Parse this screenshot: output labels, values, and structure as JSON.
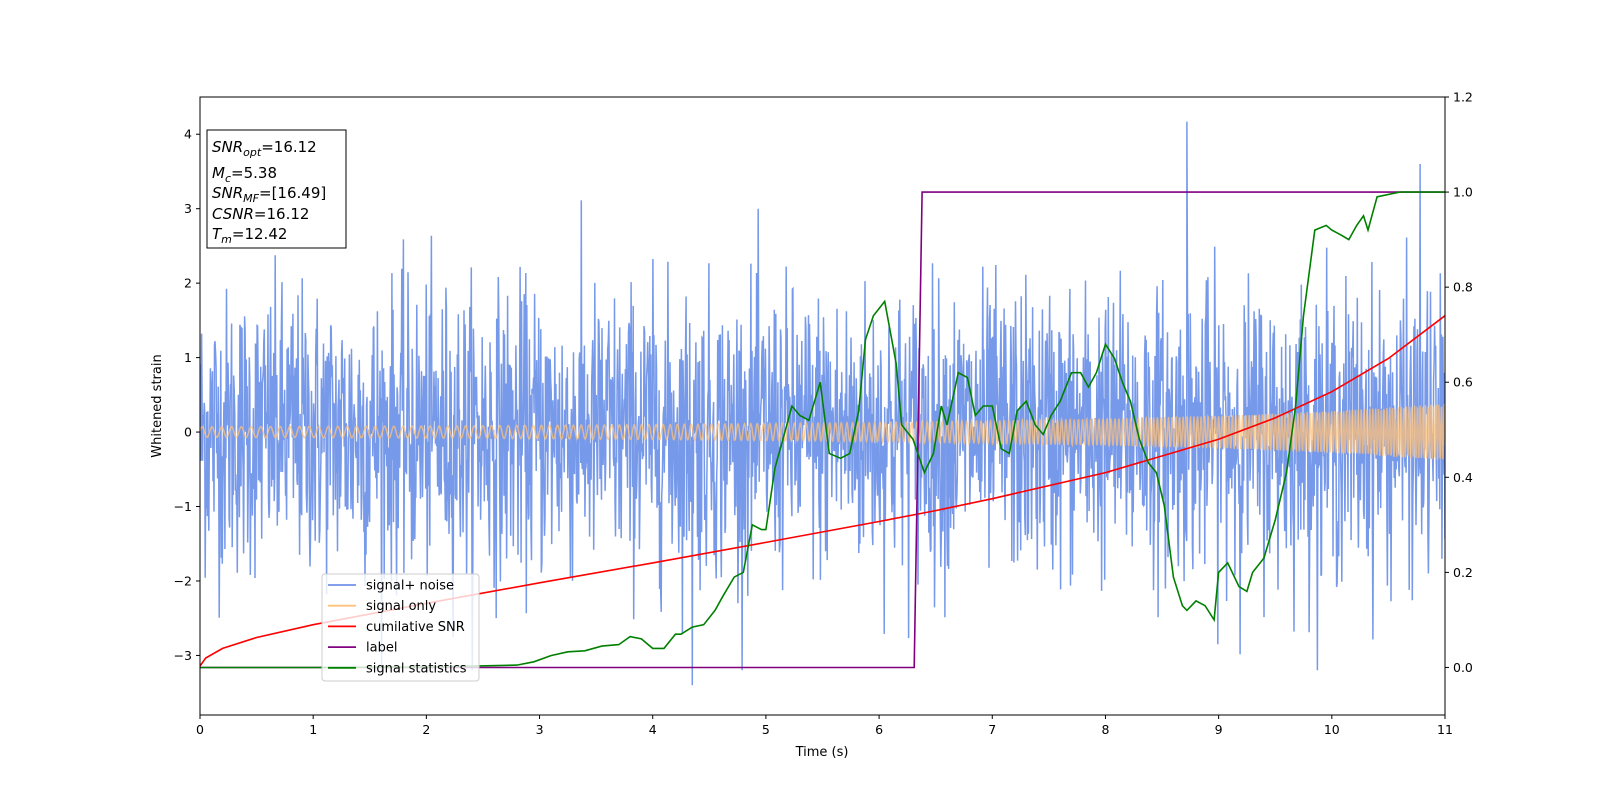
{
  "chart_data": {
    "type": "line",
    "xlabel": "Time (s)",
    "ylabel": "Whitened strain",
    "xlim": [
      0,
      11
    ],
    "ylim": [
      -3.8,
      4.5
    ],
    "y2lim": [
      -0.1,
      1.2
    ],
    "xticks": [
      "0",
      "1",
      "2",
      "3",
      "4",
      "5",
      "6",
      "7",
      "8",
      "9",
      "10",
      "11"
    ],
    "yticks": [
      "−3",
      "−2",
      "−1",
      "0",
      "1",
      "2",
      "3",
      "4"
    ],
    "y2ticks": [
      "0.0",
      "0.2",
      "0.4",
      "0.6",
      "0.8",
      "1.0",
      "1.2"
    ],
    "info_box": [
      {
        "main": "SNR",
        "sub": "opt",
        "rest": "=16.12"
      },
      {
        "main": "M",
        "sub": "c",
        "rest": "=5.38"
      },
      {
        "main": "SNR",
        "sub": "MF",
        "rest": "=[16.49]"
      },
      {
        "main": "CSNR",
        "sub": "",
        "rest": "=16.12"
      },
      {
        "main": "T",
        "sub": "m",
        "rest": "=12.42"
      }
    ],
    "legend": {
      "placement": "lower-left",
      "entries": [
        {
          "label": "signal+ noise",
          "color": "#7093e8"
        },
        {
          "label": "signal only",
          "color": "#ffc27a"
        },
        {
          "label": "cumilative SNR",
          "color": "#ff0000"
        },
        {
          "label": "label",
          "color": "#800080"
        },
        {
          "label": "signal statistics",
          "color": "#008000"
        }
      ]
    },
    "series": [
      {
        "name": "signal+ noise",
        "axis": "left",
        "color": "#7093e8",
        "description_values": {
          "approx_range": [
            -3.4,
            4.2
          ],
          "peaks": [
            [
              8.72,
              4.17
            ],
            [
              4.35,
              -3.4
            ],
            [
              10.78,
              3.6
            ]
          ]
        }
      },
      {
        "name": "signal only",
        "axis": "left",
        "color": "#ffc27a",
        "envelope": {
          "x": [
            0,
            2,
            4,
            6,
            8,
            9,
            10,
            11
          ],
          "amplitude": [
            0.07,
            0.08,
            0.1,
            0.13,
            0.18,
            0.22,
            0.28,
            0.38
          ]
        }
      },
      {
        "name": "cumilative SNR",
        "axis": "right",
        "color": "#ff0000",
        "x": [
          0,
          0.05,
          0.2,
          0.5,
          1,
          2,
          3,
          4,
          5,
          6,
          6.5,
          7,
          8,
          9,
          9.5,
          10,
          10.5,
          11
        ],
        "y": [
          0.003,
          0.02,
          0.04,
          0.063,
          0.09,
          0.135,
          0.178,
          0.22,
          0.263,
          0.307,
          0.33,
          0.355,
          0.41,
          0.48,
          0.525,
          0.58,
          0.65,
          0.74
        ]
      },
      {
        "name": "label",
        "axis": "right",
        "color": "#800080",
        "x": [
          0,
          6.31,
          6.38,
          11
        ],
        "y": [
          0,
          0,
          1,
          1
        ]
      },
      {
        "name": "signal statistics",
        "axis": "right",
        "color": "#008000",
        "x": [
          0,
          1,
          2,
          2.8,
          2.95,
          3.1,
          3.25,
          3.4,
          3.55,
          3.7,
          3.8,
          3.9,
          4.0,
          4.1,
          4.2,
          4.25,
          4.35,
          4.45,
          4.55,
          4.62,
          4.72,
          4.8,
          4.88,
          4.96,
          5.0,
          5.08,
          5.15,
          5.23,
          5.3,
          5.38,
          5.48,
          5.56,
          5.66,
          5.74,
          5.82,
          5.88,
          5.95,
          6.05,
          6.15,
          6.2,
          6.3,
          6.4,
          6.48,
          6.55,
          6.6,
          6.7,
          6.78,
          6.85,
          6.92,
          7.0,
          7.08,
          7.15,
          7.22,
          7.3,
          7.38,
          7.45,
          7.52,
          7.6,
          7.7,
          7.78,
          7.85,
          7.92,
          8.0,
          8.08,
          8.15,
          8.22,
          8.3,
          8.38,
          8.45,
          8.52,
          8.6,
          8.68,
          8.72,
          8.8,
          8.88,
          8.96,
          9.0,
          9.08,
          9.18,
          9.25,
          9.3,
          9.4,
          9.5,
          9.6,
          9.68,
          9.75,
          9.85,
          9.95,
          10.0,
          10.08,
          10.15,
          10.22,
          10.28,
          10.32,
          10.4,
          10.6,
          11
        ],
        "y": [
          0,
          0,
          0.001,
          0.005,
          0.012,
          0.025,
          0.033,
          0.035,
          0.045,
          0.048,
          0.065,
          0.06,
          0.04,
          0.04,
          0.07,
          0.07,
          0.085,
          0.09,
          0.12,
          0.15,
          0.19,
          0.2,
          0.3,
          0.29,
          0.29,
          0.42,
          0.48,
          0.55,
          0.53,
          0.52,
          0.6,
          0.45,
          0.44,
          0.45,
          0.54,
          0.69,
          0.74,
          0.77,
          0.64,
          0.51,
          0.48,
          0.41,
          0.45,
          0.55,
          0.51,
          0.62,
          0.61,
          0.53,
          0.55,
          0.55,
          0.46,
          0.45,
          0.54,
          0.56,
          0.51,
          0.49,
          0.53,
          0.56,
          0.62,
          0.62,
          0.59,
          0.62,
          0.68,
          0.65,
          0.6,
          0.56,
          0.48,
          0.43,
          0.41,
          0.34,
          0.19,
          0.13,
          0.12,
          0.14,
          0.13,
          0.1,
          0.2,
          0.22,
          0.17,
          0.16,
          0.2,
          0.23,
          0.31,
          0.41,
          0.55,
          0.74,
          0.92,
          0.93,
          0.92,
          0.91,
          0.9,
          0.93,
          0.95,
          0.92,
          0.99,
          1.0,
          1.0
        ]
      }
    ]
  }
}
